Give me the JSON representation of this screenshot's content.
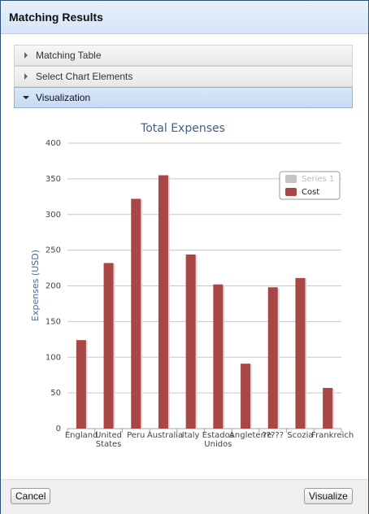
{
  "dialog": {
    "title": "Matching Results",
    "sections": [
      "Matching Table",
      "Select Chart Elements",
      "Visualization"
    ],
    "buttons": [
      "Cancel",
      "Visualize"
    ]
  },
  "chart_data": {
    "type": "bar",
    "title": "Total Expenses",
    "y_label": "Expenses (USD)",
    "categories": [
      "England",
      "United States",
      "Peru",
      "Australia",
      "Italy",
      "Estados Unidos",
      "Angleterre",
      "?????",
      "Scozia",
      "Frankreich"
    ],
    "series": [
      {
        "name": "Series 1",
        "color": "#c4c4c4",
        "hidden": true,
        "values": [
          null,
          null,
          null,
          null,
          null,
          null,
          null,
          null,
          null,
          null
        ]
      },
      {
        "name": "Cost",
        "color": "#a94646",
        "values": [
          124,
          232,
          322,
          355,
          244,
          202,
          91,
          198,
          211,
          57
        ]
      }
    ],
    "ylim": [
      0,
      400
    ],
    "yticks": [
      0,
      50,
      100,
      150,
      200,
      250,
      300,
      350,
      400
    ],
    "grid": true,
    "legend": "upper right"
  }
}
